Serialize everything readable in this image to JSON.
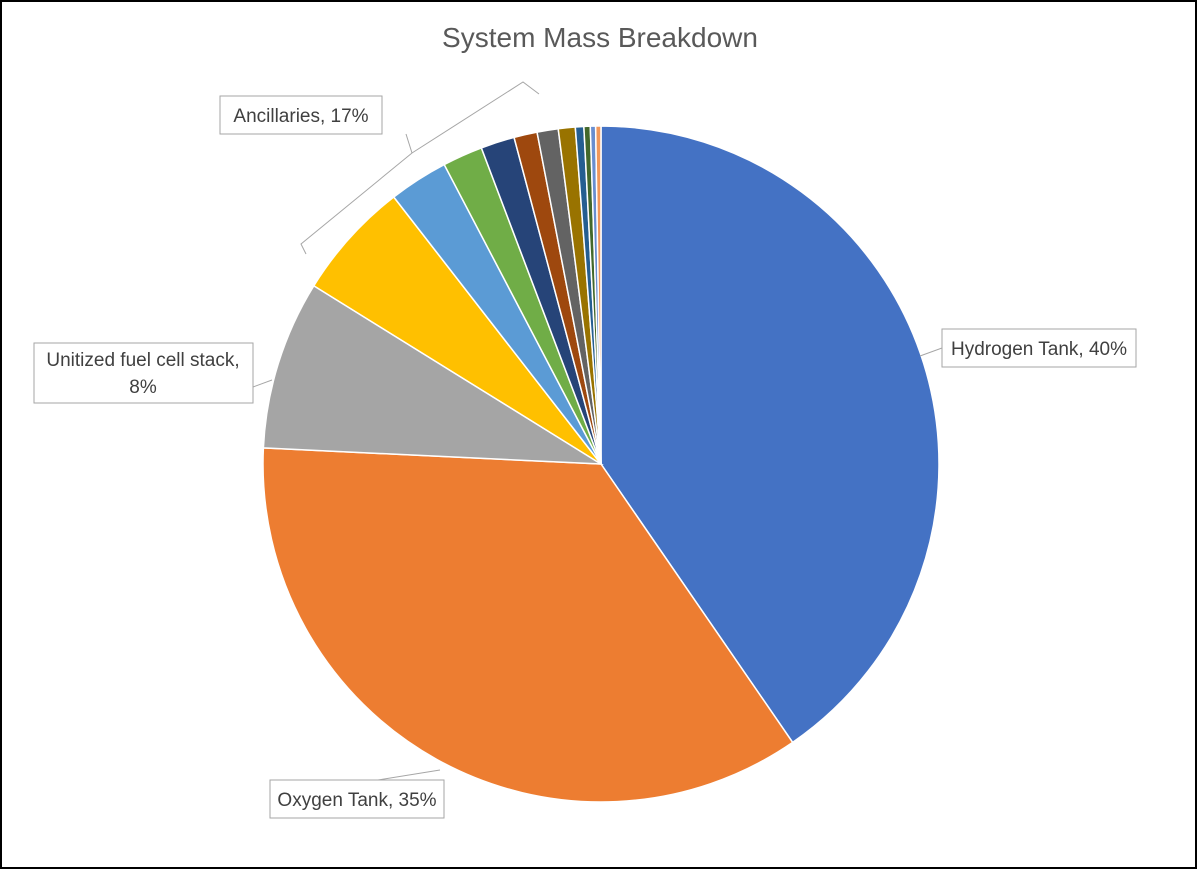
{
  "chart_data": {
    "type": "pie",
    "title": "System Mass Breakdown",
    "start_angle_deg": 0,
    "direction": "clockwise",
    "slices": [
      {
        "name": "Hydrogen Tank",
        "value": 40,
        "color": "#4472C4",
        "label": "Hydrogen Tank, 40%"
      },
      {
        "name": "Oxygen Tank",
        "value": 35,
        "color": "#ED7D31",
        "label": "Oxygen Tank, 35%"
      },
      {
        "name": "Unitized fuel cell stack",
        "value": 8,
        "color": "#A5A5A5",
        "label_lines": [
          "Unitized fuel cell stack,",
          "8%"
        ]
      },
      {
        "value": 5.6,
        "color": "#FFC000"
      },
      {
        "value": 2.8,
        "color": "#5B9BD5"
      },
      {
        "value": 1.9,
        "color": "#70AD47"
      },
      {
        "value": 1.6,
        "color": "#264478"
      },
      {
        "value": 1.1,
        "color": "#9E480E"
      },
      {
        "value": 1.0,
        "color": "#636363"
      },
      {
        "value": 0.8,
        "color": "#997300"
      },
      {
        "value": 0.4,
        "color": "#255E91"
      },
      {
        "value": 0.3,
        "color": "#43682B"
      },
      {
        "value": 0.25,
        "color": "#698ED0"
      },
      {
        "value": 0.25,
        "color": "#F1975A"
      }
    ],
    "group_label": "Ancillaries, 17%"
  }
}
